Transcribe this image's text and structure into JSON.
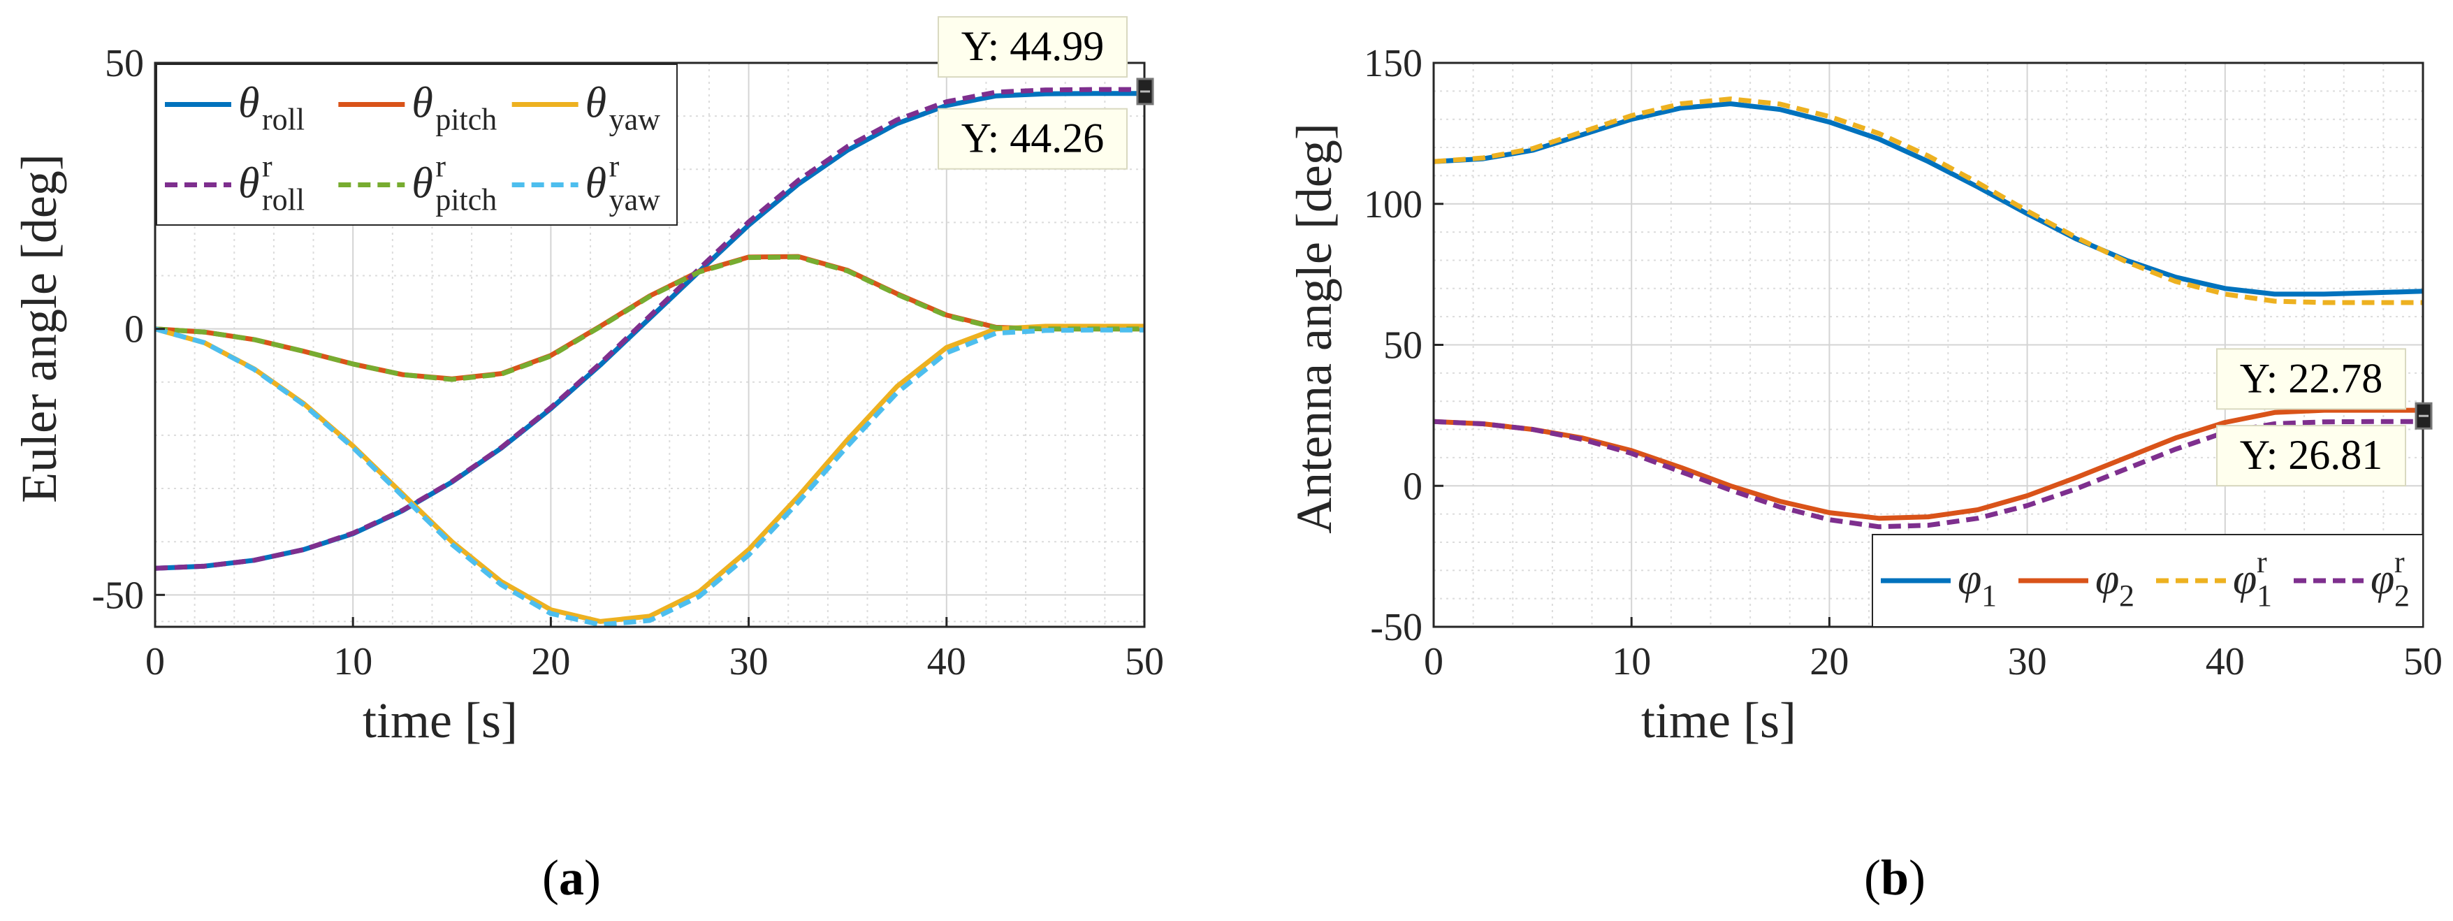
{
  "chart_data": [
    {
      "type": "line",
      "panel_label": "a",
      "xlabel": "time [s]",
      "ylabel": "Euler angle [deg]",
      "xlim": [
        0,
        50
      ],
      "ylim": [
        -56,
        50
      ],
      "xticks": [
        0,
        10,
        20,
        30,
        40,
        50
      ],
      "yticks": [
        -50,
        0,
        50
      ],
      "grid": true,
      "minor_grid": true,
      "x": [
        0,
        2.5,
        5,
        7.5,
        10,
        12.5,
        15,
        17.5,
        20,
        22.5,
        25,
        27.5,
        30,
        32.5,
        35,
        37.5,
        40,
        42.5,
        45,
        47.5,
        50
      ],
      "series": [
        {
          "id": "roll",
          "name": "θ",
          "sub": "roll",
          "sup": "",
          "color": "#0072BD",
          "dash": false,
          "values": [
            -45,
            -44.6,
            -43.5,
            -41.5,
            -38.5,
            -34.2,
            -28.8,
            -22.4,
            -15,
            -6.8,
            2,
            10.8,
            19.5,
            27.2,
            33.6,
            38.6,
            42,
            43.8,
            44.2,
            44.26,
            44.26
          ]
        },
        {
          "id": "pitch",
          "name": "θ",
          "sub": "pitch",
          "sup": "",
          "color": "#D95319",
          "dash": false,
          "values": [
            0,
            -0.6,
            -2,
            -4.2,
            -6.6,
            -8.6,
            -9.4,
            -8.4,
            -5,
            0.5,
            6.2,
            10.8,
            13.5,
            13.6,
            11,
            6.6,
            2.6,
            0.3,
            0,
            0,
            0
          ]
        },
        {
          "id": "yaw",
          "name": "θ",
          "sub": "yaw",
          "sup": "",
          "color": "#EDB120",
          "dash": false,
          "values": [
            0,
            -2.6,
            -7.5,
            -14,
            -22,
            -31,
            -40,
            -47.5,
            -52.8,
            -55,
            -54,
            -49.4,
            -41.5,
            -31.5,
            -20.8,
            -10.8,
            -3.5,
            0,
            0.5,
            0.5,
            0.5
          ]
        },
        {
          "id": "roll_r",
          "name": "θ",
          "sub": "roll",
          "sup": "r",
          "color": "#7E2F8E",
          "dash": true,
          "values": [
            -45,
            -44.6,
            -43.5,
            -41.5,
            -38.4,
            -34.1,
            -28.7,
            -22.3,
            -14.8,
            -6.5,
            2.4,
            11.3,
            20.1,
            27.9,
            34.3,
            39.3,
            42.7,
            44.5,
            44.9,
            44.99,
            44.99
          ]
        },
        {
          "id": "pitch_r",
          "name": "θ",
          "sub": "pitch",
          "sup": "r",
          "color": "#77AC30",
          "dash": true,
          "values": [
            0,
            -0.6,
            -2,
            -4.2,
            -6.6,
            -8.6,
            -9.5,
            -8.5,
            -5.1,
            0.4,
            6.1,
            10.7,
            13.4,
            13.5,
            10.9,
            6.5,
            2.5,
            0.2,
            0,
            0,
            0
          ]
        },
        {
          "id": "yaw_r",
          "name": "θ",
          "sub": "yaw",
          "sup": "r",
          "color": "#4DBEEE",
          "dash": true,
          "values": [
            0,
            -2.6,
            -7.6,
            -14.2,
            -22.3,
            -31.4,
            -40.5,
            -48.1,
            -53.5,
            -55.6,
            -54.8,
            -50.3,
            -42.5,
            -32.6,
            -22,
            -12,
            -4.5,
            -0.8,
            -0.3,
            -0.2,
            -0.2
          ]
        }
      ],
      "legend": {
        "location": "top-left",
        "columns": 3
      },
      "datatips": [
        {
          "label": "Y: 44.99",
          "x": 50,
          "y": 44.99,
          "placement": "above"
        },
        {
          "label": "Y: 44.26",
          "x": 50,
          "y": 44.26,
          "placement": "below"
        }
      ]
    },
    {
      "type": "line",
      "panel_label": "b",
      "xlabel": "time [s]",
      "ylabel": "Antenna angle [deg]",
      "xlim": [
        0,
        50
      ],
      "ylim": [
        -50,
        150
      ],
      "xticks": [
        0,
        10,
        20,
        30,
        40,
        50
      ],
      "yticks": [
        -50,
        0,
        50,
        100,
        150
      ],
      "grid": true,
      "minor_grid": true,
      "x": [
        0,
        2.5,
        5,
        7.5,
        10,
        12.5,
        15,
        17.5,
        20,
        22.5,
        25,
        27.5,
        30,
        32.5,
        35,
        37.5,
        40,
        42.5,
        45,
        47.5,
        50
      ],
      "series": [
        {
          "id": "phi1",
          "name": "φ",
          "sub": "1",
          "sup": "",
          "color": "#0072BD",
          "dash": false,
          "values": [
            115,
            116,
            119,
            124.5,
            130,
            134,
            135.5,
            133.5,
            129,
            123,
            115,
            106,
            96.5,
            87.5,
            80,
            74,
            70,
            68,
            68,
            68.5,
            69
          ]
        },
        {
          "id": "phi2",
          "name": "φ",
          "sub": "2",
          "sup": "",
          "color": "#D95319",
          "dash": false,
          "values": [
            22.78,
            22,
            20,
            17,
            12.5,
            6.5,
            0,
            -5.5,
            -9.5,
            -11.5,
            -11,
            -8.5,
            -3.5,
            3,
            10,
            17,
            22.5,
            26,
            26.8,
            26.81,
            26.81
          ]
        },
        {
          "id": "phi1_r",
          "name": "φ",
          "sub": "1",
          "sup": "r",
          "color": "#EDB120",
          "dash": true,
          "values": [
            115,
            116.3,
            119.6,
            125.5,
            131.3,
            135.5,
            137.2,
            135.4,
            131,
            125,
            117,
            107.5,
            97.5,
            88,
            79.5,
            72.5,
            68,
            65.5,
            65,
            65,
            65
          ]
        },
        {
          "id": "phi2_r",
          "name": "φ",
          "sub": "2",
          "sup": "r",
          "color": "#7E2F8E",
          "dash": true,
          "values": [
            22.78,
            22,
            20,
            16.5,
            11.5,
            5,
            -1.5,
            -7.5,
            -12,
            -14.5,
            -14,
            -11.5,
            -7,
            -1,
            6,
            13,
            19,
            22,
            22.7,
            22.78,
            22.78
          ]
        }
      ],
      "legend": {
        "location": "bottom-right",
        "columns": 4
      },
      "datatips": [
        {
          "label": "Y: 22.78",
          "x": 50,
          "y": 22.78,
          "placement": "above"
        },
        {
          "label": "Y: 26.81",
          "x": 50,
          "y": 26.81,
          "placement": "below"
        }
      ]
    }
  ]
}
